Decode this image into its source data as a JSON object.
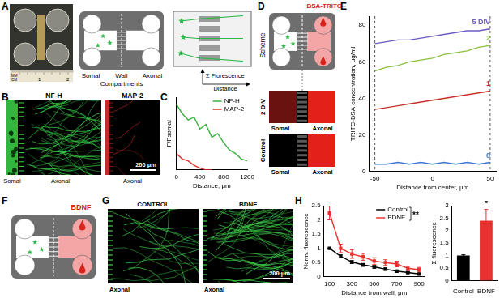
{
  "panel_labels": [
    "A",
    "B",
    "C",
    "D",
    "E",
    "F",
    "G",
    "H"
  ],
  "panel_a": {
    "ruler_labels": [
      "MM",
      "CM",
      "1",
      "2"
    ],
    "compartments": {
      "somal": "Somal",
      "wall": "Wall",
      "axonal": "Axonal",
      "caption": "Compartments"
    },
    "measure": {
      "y_label": "Σ Florescence",
      "x_label": "Distance"
    }
  },
  "panel_b": {
    "images": [
      {
        "title": "NF-H",
        "color": "#3cd64a",
        "labels": [
          "Somal",
          "Axonal"
        ]
      },
      {
        "title": "MAP-2",
        "color": "#e8322f",
        "labels": [
          "Axonal"
        ]
      }
    ],
    "scale_bar": "200 μm"
  },
  "panel_d": {
    "scheme_label": "Scheme",
    "reagent": "BSA-TRITC",
    "rows": [
      {
        "label": "2 DIV",
        "labels": [
          "Somal",
          "Axonal"
        ]
      },
      {
        "label": "Control",
        "labels": [
          "Somal",
          "Axonal"
        ]
      }
    ]
  },
  "panel_f": {
    "reagent": "BDNF"
  },
  "panel_g": {
    "images": [
      {
        "title": "CONTROL",
        "label": "Axonal"
      },
      {
        "title": "BDNF",
        "label": "Axonal"
      }
    ],
    "scale_bar": "200 μm"
  },
  "chart_data": [
    {
      "type": "line",
      "x_label": "Distance, μm",
      "y_label": "F/Fsomal",
      "x": [
        0,
        100,
        200,
        300,
        400,
        500,
        600,
        700,
        800,
        900,
        1000,
        1100,
        1200
      ],
      "xlim": [
        0,
        1200
      ],
      "xticks": [
        0,
        400,
        800,
        1200
      ],
      "ylim": [
        0,
        0.8
      ],
      "tick_labels": "x",
      "grid": false,
      "legend": "upper right",
      "series": [
        {
          "name": "NF-H",
          "color": "#3cb043",
          "values": [
            0.72,
            0.62,
            0.55,
            0.58,
            0.45,
            0.5,
            0.36,
            0.4,
            0.3,
            0.22,
            0.18,
            0.12,
            0.1
          ]
        },
        {
          "name": "MAP-2",
          "color": "#e0302a",
          "values": [
            0.18,
            0.12,
            0.1,
            0.05,
            0.02,
            0,
            0,
            null,
            null,
            null,
            null,
            null,
            null
          ]
        }
      ]
    },
    {
      "type": "line",
      "x_label": "Distance from center, μm",
      "y_label": "TRITC-BSA concentration, μg/ml",
      "x": [
        -50,
        -40,
        -30,
        -20,
        -10,
        0,
        10,
        20,
        30,
        40,
        50
      ],
      "xlim": [
        -55,
        55
      ],
      "xticks": [
        -50,
        0,
        50
      ],
      "ylim": [
        0,
        85
      ],
      "yticks": [
        0,
        20,
        40,
        60,
        80
      ],
      "grid": false,
      "series": [
        {
          "name": "0",
          "color": "#3b78d4",
          "values": [
            4,
            4,
            5,
            4,
            5,
            4,
            5,
            4,
            5,
            4,
            5
          ]
        },
        {
          "name": "1",
          "color": "#c8312b",
          "values": [
            34,
            35,
            36,
            37,
            38,
            39,
            40,
            41,
            42,
            43,
            44
          ]
        },
        {
          "name": "2",
          "color": "#8cbf3f",
          "values": [
            55,
            57,
            58,
            60,
            61,
            62,
            64,
            65,
            66,
            68,
            69
          ]
        },
        {
          "name": "5 DIV",
          "color": "#6b5bc4",
          "values": [
            70,
            71,
            72,
            72,
            73,
            74,
            75,
            76,
            77,
            77,
            78
          ]
        }
      ]
    },
    {
      "type": "line",
      "x_label": "Distance from wall, μm",
      "y_label": "Norm. fluorescence",
      "x": [
        100,
        200,
        300,
        400,
        500,
        600,
        700,
        800,
        900
      ],
      "xlim": [
        50,
        950
      ],
      "xticks": [
        100,
        300,
        500,
        700,
        900
      ],
      "ylim": [
        0,
        2.5
      ],
      "yticks": [
        0,
        0.5,
        1,
        1.5,
        2,
        2.5
      ],
      "grid": false,
      "legend": "upper right",
      "annotation": "**",
      "series": [
        {
          "name": "Control",
          "color": "#000000",
          "marker": "square",
          "values": [
            1.0,
            0.72,
            0.52,
            0.42,
            0.35,
            0.27,
            0.2,
            0.15,
            0.1
          ],
          "errors": [
            0,
            0.05,
            0.05,
            0.05,
            0.05,
            0.04,
            0.04,
            0.03,
            0.03
          ]
        },
        {
          "name": "BDNF",
          "color": "#e8322f",
          "marker": "square",
          "values": [
            2.25,
            1.0,
            0.8,
            0.7,
            0.55,
            0.5,
            0.45,
            0.3,
            0.25
          ],
          "errors": [
            0.25,
            0.15,
            0.15,
            0.12,
            0.12,
            0.1,
            0.1,
            0.08,
            0.08
          ]
        }
      ]
    },
    {
      "type": "bar",
      "y_label": "Σ fluorescence",
      "categories": [
        "Control",
        "BDNF"
      ],
      "values": [
        1,
        2.4
      ],
      "errors": [
        0.03,
        0.45
      ],
      "colors": [
        "#000000",
        "#e8322f"
      ],
      "ylim": [
        0,
        3
      ],
      "yticks": [
        0,
        0.5,
        1,
        1.5,
        2,
        2.5,
        3
      ],
      "grid": false,
      "annotation": "*"
    }
  ]
}
